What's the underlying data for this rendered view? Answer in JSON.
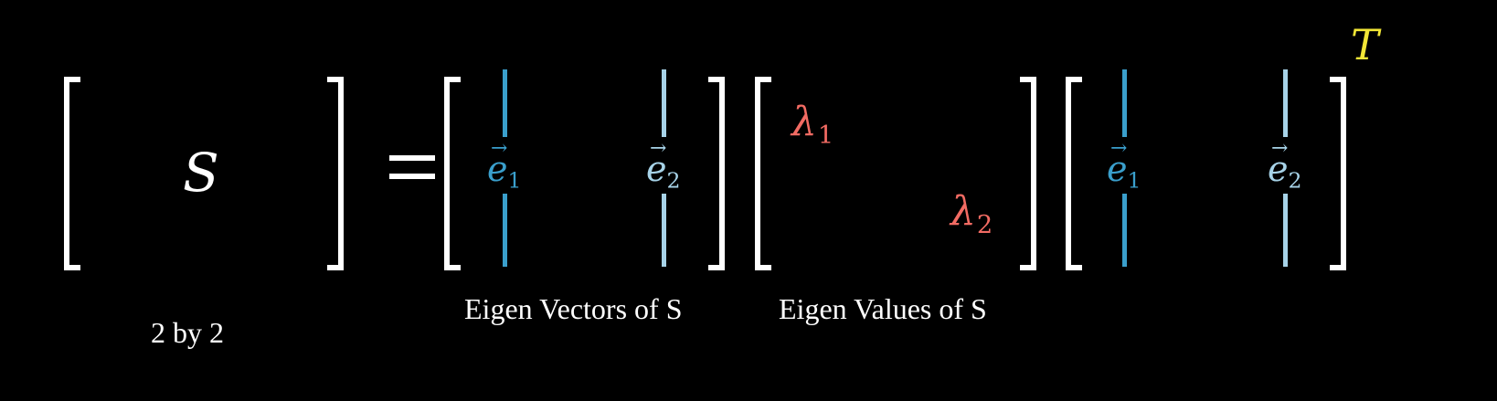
{
  "colors": {
    "background": "#000000",
    "bracket": "#ffffff",
    "text": "#ffffff",
    "eigenvector_left": "#3a9fcc",
    "eigenvector_right": "#a7d3e8",
    "eigenvalue": "#f26b63",
    "transpose": "#f2e636"
  },
  "equation": {
    "matrix_symbol": "S",
    "equals": "=",
    "eigenvectors": {
      "v1": {
        "base": "e",
        "arrow": "→",
        "sub": "1"
      },
      "v2": {
        "base": "e",
        "arrow": "→",
        "sub": "2"
      }
    },
    "eigenvalues": {
      "l1": {
        "base": "λ",
        "sub": "1"
      },
      "l2": {
        "base": "λ",
        "sub": "2"
      }
    },
    "transpose": "T"
  },
  "captions": {
    "size": "2 by 2",
    "eigenvectors": "Eigen Vectors of S",
    "eigenvalues": "Eigen Values of S"
  }
}
